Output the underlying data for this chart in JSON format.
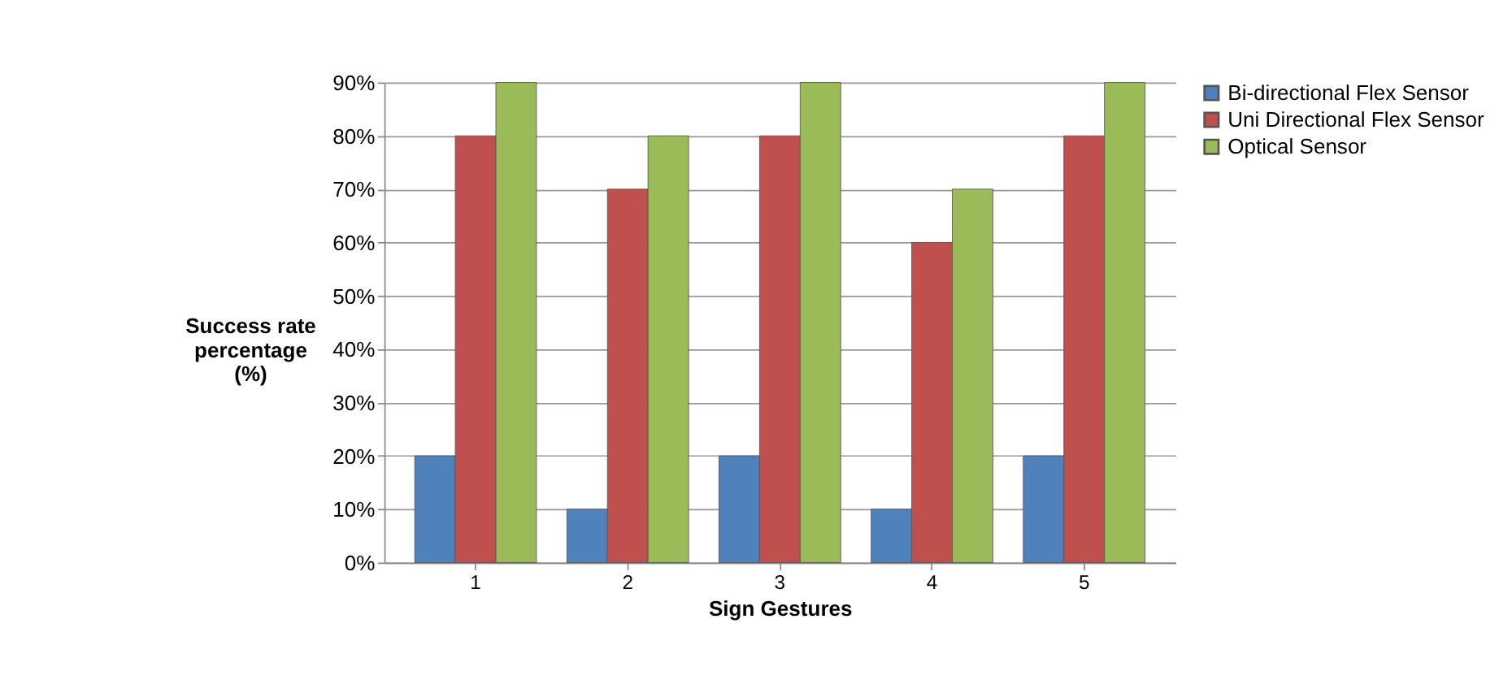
{
  "chart_data": {
    "type": "bar",
    "xlabel": "Sign Gestures",
    "ylabel": "Success rate percentage (%)",
    "categories": [
      "1",
      "2",
      "3",
      "4",
      "5"
    ],
    "series": [
      {
        "name": "Bi-directional Flex Sensor",
        "color": "#4f81bd",
        "values": [
          20,
          10,
          20,
          10,
          20
        ]
      },
      {
        "name": "Uni Directional Flex Sensor",
        "color": "#c0504d",
        "values": [
          80,
          70,
          80,
          60,
          80
        ]
      },
      {
        "name": "Optical Sensor",
        "color": "#9bbb59",
        "values": [
          90,
          80,
          90,
          70,
          90
        ]
      }
    ],
    "ylim": [
      0,
      90
    ],
    "yticks": [
      {
        "value": 0,
        "label": "0%"
      },
      {
        "value": 10,
        "label": "10%"
      },
      {
        "value": 20,
        "label": "20%"
      },
      {
        "value": 30,
        "label": "30%"
      },
      {
        "value": 40,
        "label": "40%"
      },
      {
        "value": 50,
        "label": "50%"
      },
      {
        "value": 60,
        "label": "60%"
      },
      {
        "value": 70,
        "label": "70%"
      },
      {
        "value": 80,
        "label": "80%"
      },
      {
        "value": 90,
        "label": "90%"
      }
    ],
    "grid": "y",
    "legend": "right"
  }
}
